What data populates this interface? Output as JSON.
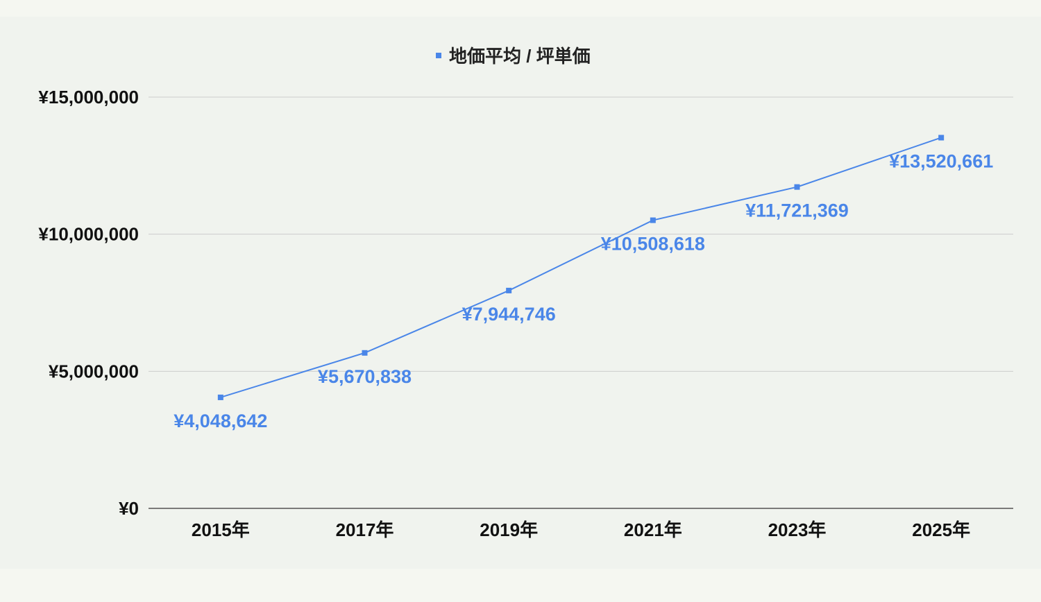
{
  "chart_data": {
    "type": "line",
    "title": "",
    "xlabel": "",
    "ylabel": "",
    "categories": [
      "2015年",
      "2017年",
      "2019年",
      "2021年",
      "2023年",
      "2025年"
    ],
    "series": [
      {
        "name": "地価平均 / 坪単価",
        "values": [
          4048642,
          5670838,
          7944746,
          10508618,
          11721369,
          13520661
        ],
        "labels": [
          "¥4,048,642",
          "¥5,670,838",
          "¥7,944,746",
          "¥10,508,618",
          "¥11,721,369",
          "¥13,520,661"
        ]
      }
    ],
    "ylim": [
      0,
      15000000
    ],
    "yticks": [
      0,
      5000000,
      10000000,
      15000000
    ],
    "ytick_labels": [
      "¥0",
      "¥5,000,000",
      "¥10,000,000",
      "¥15,000,000"
    ],
    "grid": true,
    "legend_position": "top",
    "colors": {
      "series": "#4a86e8",
      "grid": "#cccccc",
      "axis": "#333333"
    }
  }
}
